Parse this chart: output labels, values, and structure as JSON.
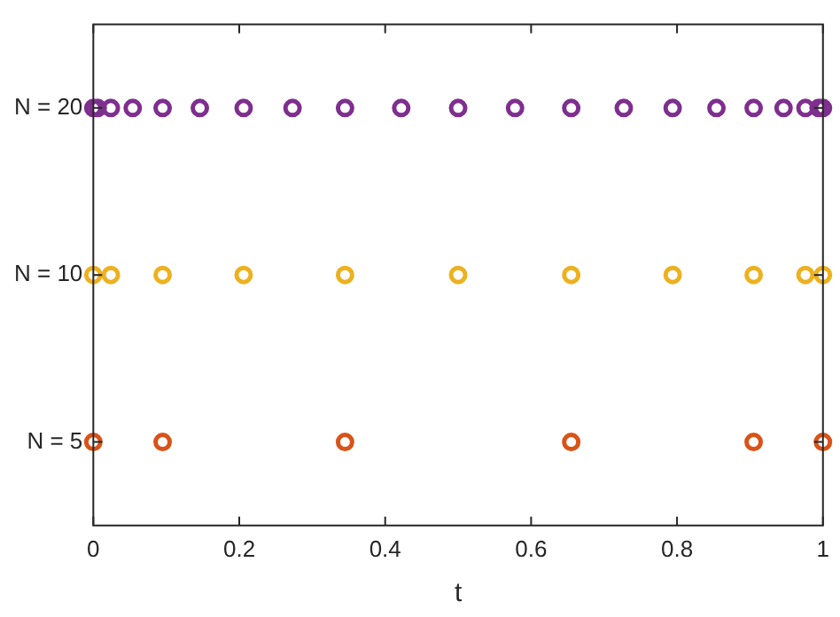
{
  "chart_data": {
    "type": "scatter",
    "orientation": "horizontal",
    "xlabel": "t",
    "marker": "circle",
    "grid": false,
    "xlim": [
      0,
      1
    ],
    "xticks": [
      0,
      0.2,
      0.4,
      0.6,
      0.8,
      1
    ],
    "categories": [
      "N = 20",
      "N = 10",
      "N = 5"
    ],
    "series": [
      {
        "color": "#d95319",
        "x": [
          "N = 5",
          "N = 5",
          "N = 5",
          "N = 5",
          "N = 5",
          "N = 5"
        ],
        "values": [
          0,
          0.095,
          0.345,
          0.655,
          0.905,
          1
        ]
      },
      {
        "color": "#edb120",
        "x": [
          "N = 10",
          "N = 10",
          "N = 10",
          "N = 10",
          "N = 10",
          "N = 10",
          "N = 10",
          "N = 10",
          "N = 10",
          "N = 10",
          "N = 10"
        ],
        "values": [
          0,
          0.024,
          0.095,
          0.206,
          0.345,
          0.5,
          0.655,
          0.794,
          0.905,
          0.976,
          1
        ]
      },
      {
        "color": "#7e2f8e",
        "x": [
          "N = 20",
          "N = 20",
          "N = 20",
          "N = 20",
          "N = 20",
          "N = 20",
          "N = 20",
          "N = 20",
          "N = 20",
          "N = 20",
          "N = 20",
          "N = 20",
          "N = 20",
          "N = 20",
          "N = 20",
          "N = 20",
          "N = 20",
          "N = 20",
          "N = 20",
          "N = 20",
          "N = 20"
        ],
        "values": [
          0,
          0.006,
          0.024,
          0.054,
          0.095,
          0.146,
          0.206,
          0.273,
          0.345,
          0.422,
          0.5,
          0.578,
          0.655,
          0.727,
          0.794,
          0.854,
          0.905,
          0.946,
          0.976,
          0.994,
          1
        ]
      }
    ]
  }
}
